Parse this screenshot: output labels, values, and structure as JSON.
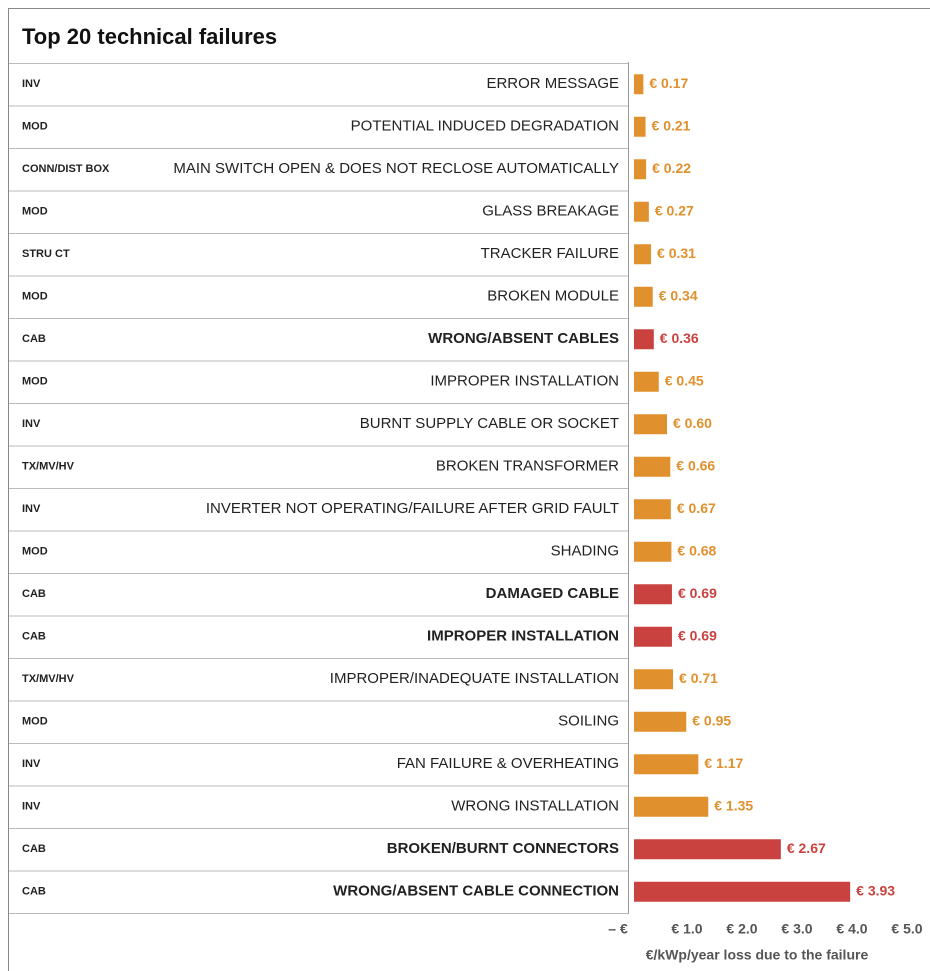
{
  "chart_data": {
    "type": "barh",
    "title": "Top 20 technical failures",
    "groups": [
      "INV",
      "MOD",
      "CONN/DIST BOX",
      "MOD",
      "STRU CT",
      "MOD",
      "CAB",
      "MOD",
      "INV",
      "TX/MV/HV",
      "INV",
      "MOD",
      "CAB",
      "CAB",
      "TX/MV/HV",
      "MOD",
      "INV",
      "INV",
      "CAB",
      "CAB"
    ],
    "categories": [
      "ERROR MESSAGE",
      "POTENTIAL INDUCED DEGRADATION",
      "MAIN SWITCH OPEN & DOES NOT RECLOSE AUTOMATICALLY",
      "GLASS BREAKAGE",
      "TRACKER FAILURE",
      "BROKEN MODULE",
      "WRONG/ABSENT CABLES",
      "IMPROPER INSTALLATION",
      "BURNT SUPPLY CABLE OR SOCKET",
      "BROKEN TRANSFORMER",
      "INVERTER NOT OPERATING/FAILURE AFTER GRID FAULT",
      "SHADING",
      "DAMAGED CABLE",
      "IMPROPER INSTALLATION",
      "IMPROPER/INADEQUATE INSTALLATION",
      "SOILING",
      "FAN FAILURE & OVERHEATING",
      "WRONG INSTALLATION",
      "BROKEN/BURNT CONNECTORS",
      "WRONG/ABSENT CABLE CONNECTION"
    ],
    "values": [
      0.17,
      0.21,
      0.22,
      0.27,
      0.31,
      0.34,
      0.36,
      0.45,
      0.6,
      0.66,
      0.67,
      0.68,
      0.69,
      0.69,
      0.71,
      0.95,
      1.17,
      1.35,
      2.67,
      3.93
    ],
    "value_labels": [
      "€ 0.17",
      "€ 0.21",
      "€ 0.22",
      "€ 0.27",
      "€ 0.31",
      "€ 0.34",
      "€ 0.36",
      "€ 0.45",
      "€ 0.60",
      "€ 0.66",
      "€ 0.67",
      "€ 0.68",
      "€ 0.69",
      "€ 0.69",
      "€ 0.71",
      "€ 0.95",
      "€ 1.17",
      "€ 1.35",
      "€ 2.67",
      "€ 3.93"
    ],
    "highlight_group": "CAB",
    "color": "#e0902c",
    "highlight_color": "#c9423f",
    "xlim": [
      0,
      5.4
    ],
    "xticks": [
      {
        "value": 0,
        "label": "– €"
      },
      {
        "value": 1,
        "label": "€ 1.0"
      },
      {
        "value": 2,
        "label": "€ 2.0"
      },
      {
        "value": 3,
        "label": "€ 3.0"
      },
      {
        "value": 4,
        "label": "€ 4.0"
      },
      {
        "value": 5,
        "label": "€ 5.0"
      }
    ],
    "x_label": "€/kWp/year loss due to the failure"
  }
}
